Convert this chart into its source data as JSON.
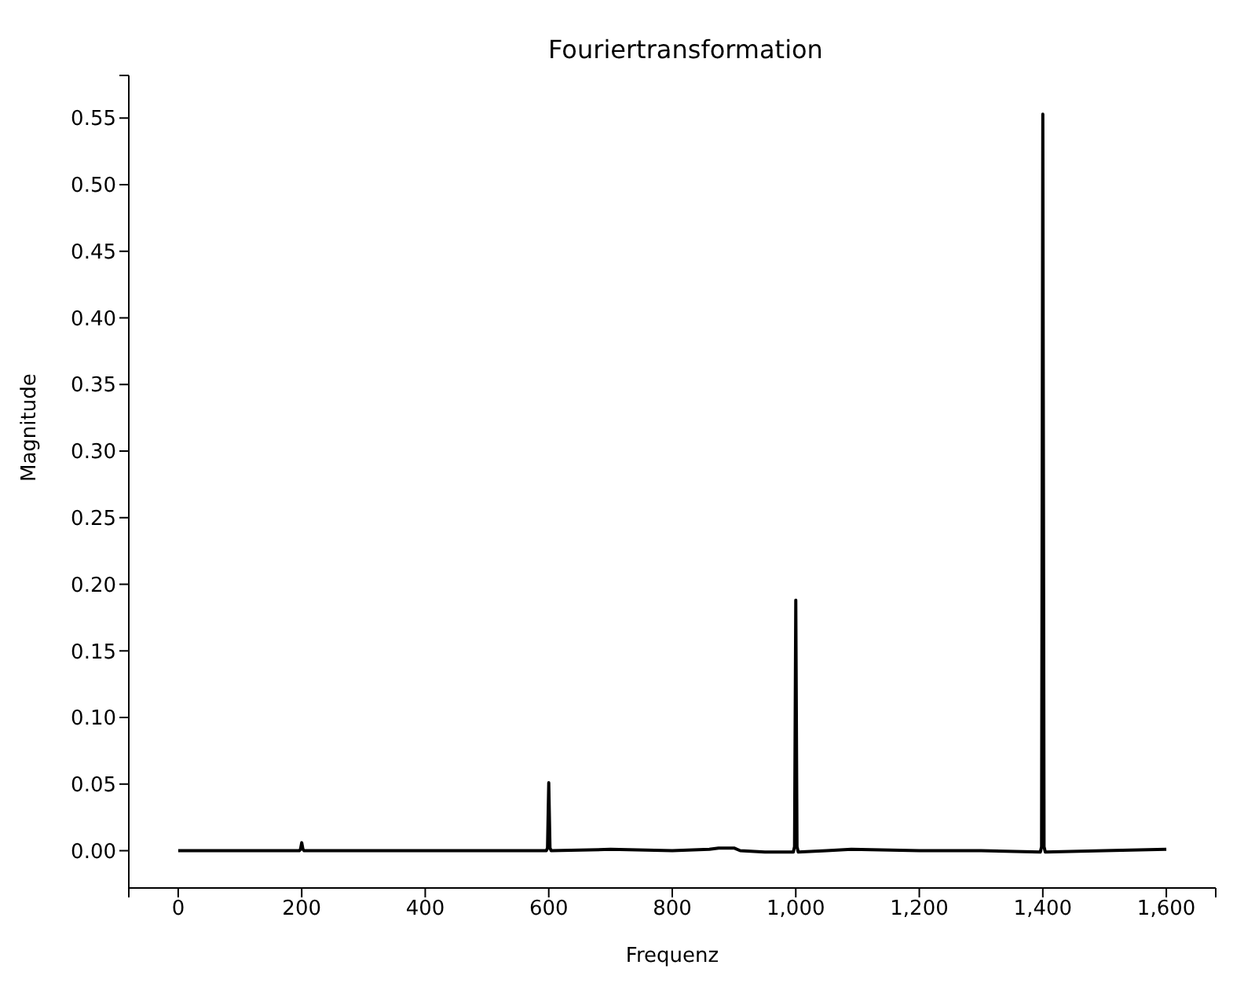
{
  "chart_data": {
    "type": "line",
    "title": "Fouriertransformation",
    "xlabel": "Frequenz",
    "ylabel": "Magnitude",
    "x": [
      0,
      100,
      196,
      198,
      200,
      202,
      204,
      300,
      400,
      500,
      596,
      598,
      600,
      602,
      604,
      700,
      800,
      860,
      875,
      900,
      910,
      950,
      996,
      998,
      1000,
      1002,
      1004,
      1050,
      1090,
      1200,
      1300,
      1396,
      1398,
      1400,
      1402,
      1404,
      1500,
      1600
    ],
    "series": [
      {
        "color": "#000000",
        "values": [
          0,
          0,
          0,
          0.001,
          0.006,
          0.001,
          0,
          0,
          0,
          0,
          0,
          0.002,
          0.051,
          0.002,
          0,
          0.001,
          0,
          0.001,
          0.002,
          0.002,
          0,
          -0.001,
          -0.001,
          0.003,
          0.188,
          0.003,
          -0.001,
          0,
          0.001,
          0,
          0,
          -0.001,
          0.003,
          0.553,
          0.003,
          -0.001,
          0,
          0.001
        ]
      }
    ],
    "xlim": [
      -80,
      1680
    ],
    "xticks": [
      {
        "value": -80,
        "label": null
      },
      0,
      200,
      400,
      600,
      800,
      {
        "value": 1000,
        "label": "1,000"
      },
      {
        "value": 1200,
        "label": "1,200"
      },
      {
        "value": 1400,
        "label": "1,400"
      },
      {
        "value": 1600,
        "label": "1,600"
      },
      {
        "value": 1680,
        "label": null
      }
    ],
    "ylim": [
      -0.028,
      0.582
    ],
    "yticks": [
      {
        "value": 0,
        "label": "0.00"
      },
      0.05,
      {
        "value": 0.1,
        "label": "0.10"
      },
      0.15,
      {
        "value": 0.2,
        "label": "0.20"
      },
      0.25,
      {
        "value": 0.3,
        "label": "0.30"
      },
      0.35,
      {
        "value": 0.4,
        "label": "0.40"
      },
      0.45,
      {
        "value": 0.5,
        "label": "0.50"
      },
      0.55,
      {
        "value": 0.582,
        "label": null
      }
    ],
    "grid": false,
    "legend": false,
    "marker": "none",
    "line_style": "solid"
  }
}
